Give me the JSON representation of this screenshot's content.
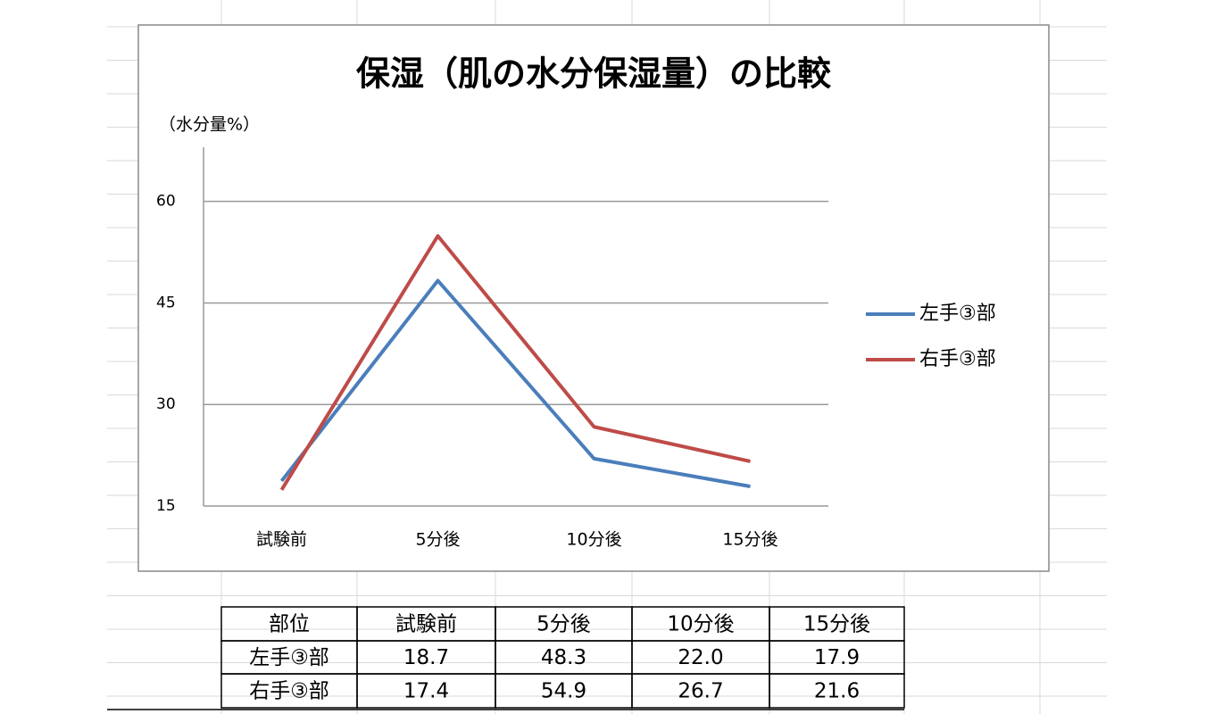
{
  "chart_data": {
    "type": "line",
    "title": "保湿（肌の水分保湿量）の比較",
    "y_label": "（水分量%）",
    "categories": [
      "試験前",
      "5分後",
      "10分後",
      "15分後"
    ],
    "series": [
      {
        "name": "左手③部",
        "color": "#4a7ebb",
        "values": [
          18.7,
          48.3,
          22.0,
          17.9
        ]
      },
      {
        "name": "右手③部",
        "color": "#be4b48",
        "values": [
          17.4,
          54.9,
          26.7,
          21.6
        ]
      }
    ],
    "ylim": [
      15,
      68
    ],
    "yticks": [
      15,
      30,
      45,
      60
    ],
    "grid": true,
    "legend": "right"
  },
  "table": {
    "header": [
      "部位",
      "試験前",
      "5分後",
      "10分後",
      "15分後"
    ],
    "rows": [
      [
        "左手③部",
        "18.7",
        "48.3",
        "22.0",
        "17.9"
      ],
      [
        "右手③部",
        "17.4",
        "54.9",
        "26.7",
        "21.6"
      ]
    ]
  }
}
